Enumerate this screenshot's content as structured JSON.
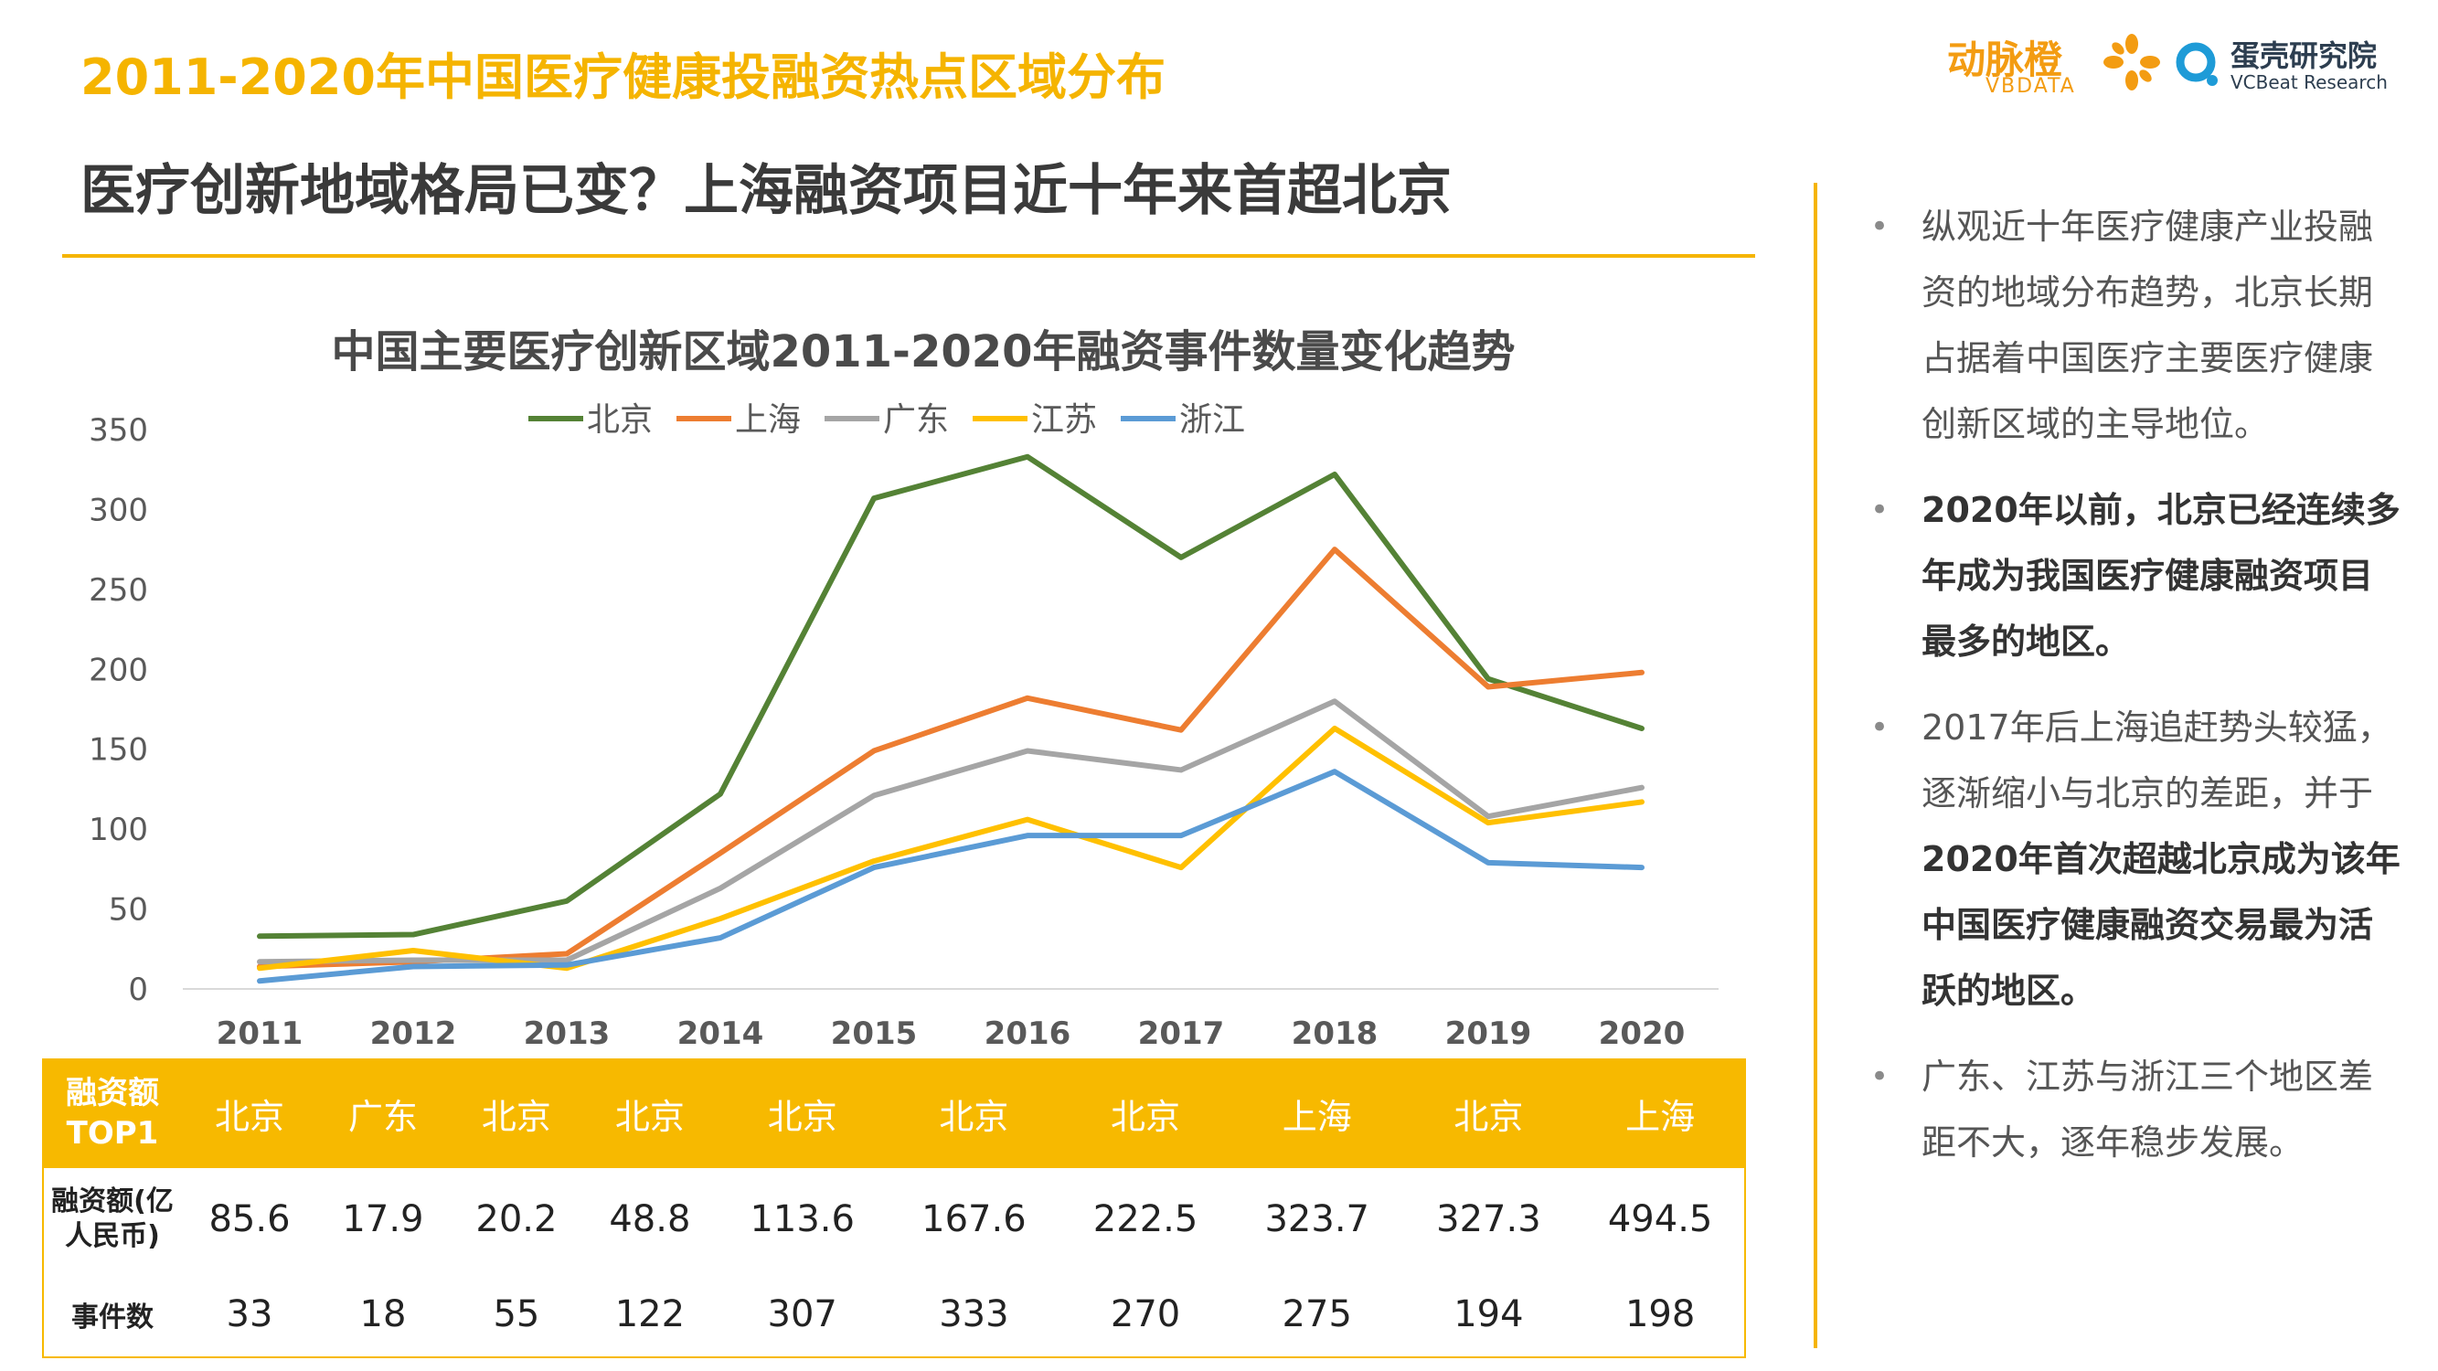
{
  "header": {
    "top_title": "2011-2020年中国医疗健康投融资热点区域分布",
    "subtitle": "医疗创新地域格局已变？上海融资项目近十年来首超北京"
  },
  "logos": {
    "vbdata_cn": "动脉橙",
    "vbdata_en": "VBDATA",
    "vcbeat_cn": "蛋壳研究院",
    "vcbeat_en": "VCBeat Research"
  },
  "colors": {
    "accent": "#f5b400",
    "beijing": "#548235",
    "shanghai": "#ed7d31",
    "guangdong": "#a5a5a5",
    "jiangsu": "#ffc000",
    "zhejiang": "#5b9bd5"
  },
  "chart_data": {
    "type": "line",
    "title": "中国主要医疗创新区域2011-2020年融资事件数量变化趋势",
    "x": [
      "2011",
      "2012",
      "2013",
      "2014",
      "2015",
      "2016",
      "2017",
      "2018",
      "2019",
      "2020"
    ],
    "ylim": [
      0,
      350
    ],
    "yticks": [
      0,
      50,
      100,
      150,
      200,
      250,
      300,
      350
    ],
    "legend_position": "top-center",
    "grid": false,
    "series": [
      {
        "name": "北京",
        "color": "#548235",
        "values": [
          33,
          34,
          55,
          122,
          307,
          333,
          270,
          322,
          194,
          163
        ]
      },
      {
        "name": "上海",
        "color": "#ed7d31",
        "values": [
          14,
          17,
          22,
          85,
          149,
          182,
          162,
          275,
          189,
          198
        ]
      },
      {
        "name": "广东",
        "color": "#a5a5a5",
        "values": [
          17,
          18,
          18,
          63,
          121,
          149,
          137,
          180,
          108,
          126
        ]
      },
      {
        "name": "江苏",
        "color": "#ffc000",
        "values": [
          13,
          24,
          13,
          44,
          80,
          106,
          76,
          163,
          104,
          117
        ]
      },
      {
        "name": "浙江",
        "color": "#5b9bd5",
        "values": [
          5,
          14,
          15,
          32,
          76,
          96,
          96,
          136,
          79,
          76
        ]
      }
    ]
  },
  "table": {
    "top_label": "融资额TOP1",
    "amount_label": "融资额(亿人民币)",
    "count_label": "事件数",
    "top_regions": [
      "北京",
      "广东",
      "北京",
      "北京",
      "北京",
      "北京",
      "北京",
      "上海",
      "北京",
      "上海"
    ],
    "amounts": [
      "85.6",
      "17.9",
      "20.2",
      "48.8",
      "113.6",
      "167.6",
      "222.5",
      "323.7",
      "327.3",
      "494.5"
    ],
    "counts": [
      "33",
      "18",
      "55",
      "122",
      "307",
      "333",
      "270",
      "275",
      "194",
      "198"
    ]
  },
  "bullets": [
    {
      "parts": [
        {
          "text": "纵观近十年医疗健康产业投融资的地域分布趋势，北京长期占据着中国医疗主要医疗健康创新区域的主导地位。",
          "bold": false
        }
      ]
    },
    {
      "parts": [
        {
          "text": "2020年以前，北京已经连续多年成为我国医疗健康融资项目最多的地区。",
          "bold": true
        }
      ]
    },
    {
      "parts": [
        {
          "text": "2017年后上海追赶势头较猛，逐渐缩小与北京的差距，并于",
          "bold": false
        },
        {
          "text": "2020年首次超越北京成为该年中国医疗健康融资交易最为活跃的地区。",
          "bold": true
        }
      ]
    },
    {
      "parts": [
        {
          "text": "广东、江苏与浙江三个地区差距不大，逐年稳步发展。",
          "bold": false
        }
      ]
    }
  ]
}
